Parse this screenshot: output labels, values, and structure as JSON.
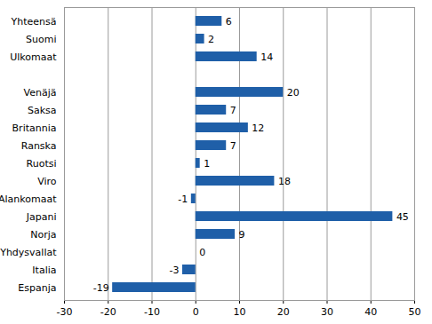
{
  "chart_data": {
    "type": "bar",
    "orientation": "horizontal",
    "categories": [
      "Yhteensä",
      "Suomi",
      "Ulkomaat",
      null,
      "Venäjä",
      "Saksa",
      "Britannia",
      "Ranska",
      "Ruotsi",
      "Viro",
      "Alankomaat",
      "Japani",
      "Norja",
      "Yhdysvallat",
      "Italia",
      "Espanja"
    ],
    "values": [
      6,
      2,
      14,
      null,
      20,
      7,
      12,
      7,
      1,
      18,
      -1,
      45,
      9,
      0,
      -3,
      -19
    ],
    "color": "#1f5fa8",
    "xlim": [
      -30,
      50
    ],
    "xticks": [
      -30,
      -20,
      -10,
      0,
      10,
      20,
      30,
      40,
      50
    ],
    "grid": true,
    "data_labels": true
  }
}
